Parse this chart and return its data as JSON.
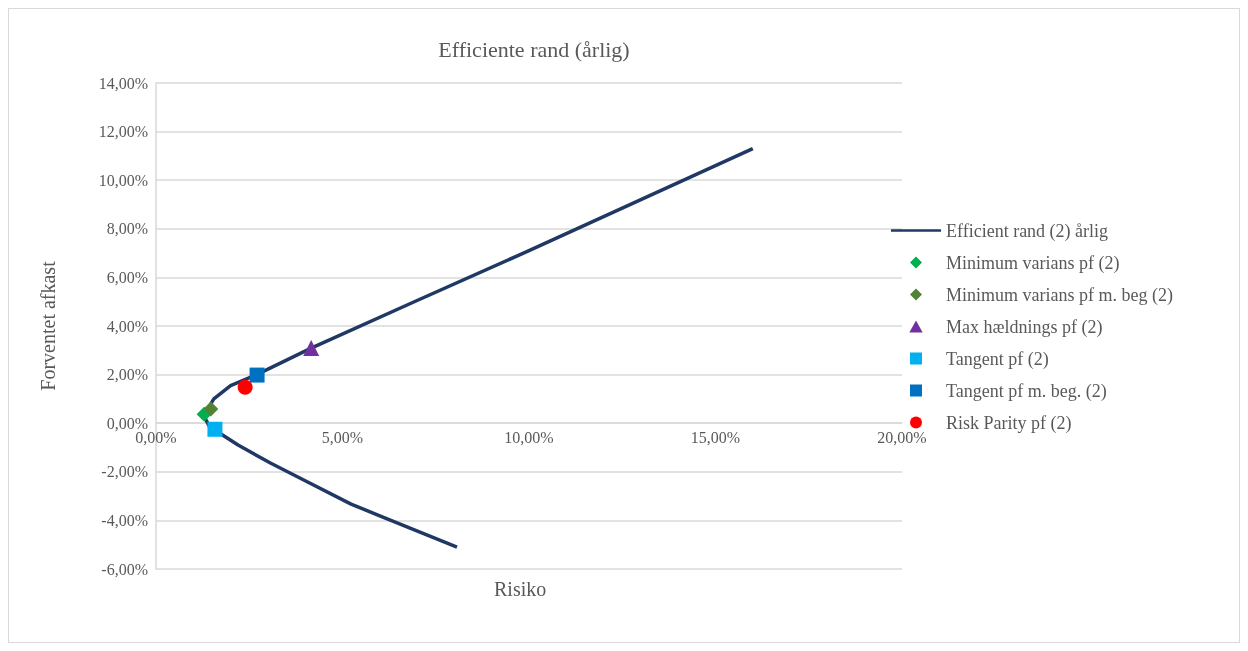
{
  "chart_data": {
    "type": "line",
    "title": "Efficiente rand (årlig)",
    "xlabel": "Risiko",
    "ylabel": "Forventet afkast",
    "xlim": [
      0,
      20
    ],
    "ylim": [
      -6,
      14
    ],
    "xticks": [
      {
        "value": 0,
        "label": "0,00%"
      },
      {
        "value": 5,
        "label": "5,00%"
      },
      {
        "value": 10,
        "label": "10,00%"
      },
      {
        "value": 15,
        "label": "15,00%"
      },
      {
        "value": 20,
        "label": "20,00%"
      }
    ],
    "yticks": [
      {
        "value": -6,
        "label": "-6,00%"
      },
      {
        "value": -4,
        "label": "-4,00%"
      },
      {
        "value": -2,
        "label": "-2,00%"
      },
      {
        "value": 0,
        "label": "0,00%"
      },
      {
        "value": 2,
        "label": "2,00%"
      },
      {
        "value": 4,
        "label": "4,00%"
      },
      {
        "value": 6,
        "label": "6,00%"
      },
      {
        "value": 8,
        "label": "8,00%"
      },
      {
        "value": 10,
        "label": "10,00%"
      },
      {
        "value": 12,
        "label": "12,00%"
      },
      {
        "value": 14,
        "label": "14,00%"
      }
    ],
    "grid": "y",
    "legend": "right",
    "series": [
      {
        "name": "Efficient rand (2) årlig",
        "marker": "none",
        "color": "#203864",
        "x": [
          8.07,
          6,
          5.23,
          4,
          3.08,
          2.2,
          1.7,
          1.42,
          1.3,
          1.35,
          1.55,
          2.0,
          2.7,
          4.16,
          7,
          10,
          13,
          16
        ],
        "values": [
          -5.1,
          -3.81,
          -3.33,
          -2.37,
          -1.65,
          -0.9,
          -0.4,
          -0.1,
          0.25,
          0.5,
          1.0,
          1.55,
          2.0,
          3.09,
          5.05,
          7.1,
          9.2,
          11.3
        ]
      },
      {
        "name": "Minimum varians pf (2)",
        "type": "scatter",
        "marker": "diamond",
        "color": "#00b050",
        "x": [
          1.29
        ],
        "values": [
          0.37
        ]
      },
      {
        "name": "Minimum varians pf m. beg (2)",
        "type": "scatter",
        "marker": "diamond",
        "color": "#548235",
        "x": [
          1.47
        ],
        "values": [
          0.58
        ]
      },
      {
        "name": "Max hældnings pf (2)",
        "type": "scatter",
        "marker": "triangle",
        "color": "#7030a0",
        "x": [
          4.16
        ],
        "values": [
          3.09
        ]
      },
      {
        "name": "Tangent pf (2)",
        "type": "scatter",
        "marker": "square",
        "color": "#00b0f0",
        "x": [
          1.58
        ],
        "values": [
          -0.25
        ]
      },
      {
        "name": "Tangent pf m. beg. (2)",
        "type": "scatter",
        "marker": "square",
        "color": "#0070c0",
        "x": [
          2.71
        ],
        "values": [
          1.98
        ]
      },
      {
        "name": "Risk Parity pf (2)",
        "type": "scatter",
        "marker": "circle",
        "color": "#ff0000",
        "x": [
          2.39
        ],
        "values": [
          1.48
        ]
      }
    ]
  }
}
